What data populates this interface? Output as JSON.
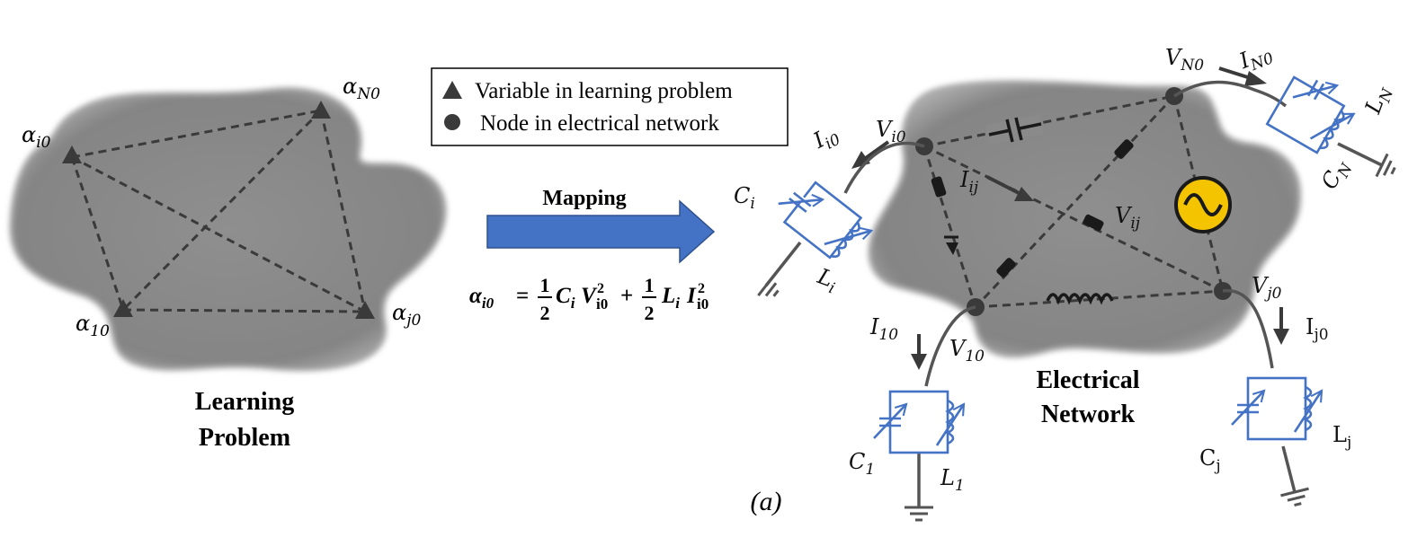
{
  "legend": {
    "variable": "Variable in learning problem",
    "node": "Node in electrical network"
  },
  "learning_problem": {
    "title_line1": "Learning",
    "title_line2": "Problem",
    "labels": {
      "a_i0": {
        "base": "α",
        "sub": "i0"
      },
      "a_N0": {
        "base": "α",
        "sub": "N0"
      },
      "a_10": {
        "base": "α",
        "sub": "10"
      },
      "a_j0": {
        "base": "α",
        "sub": "j0"
      }
    }
  },
  "mapping": {
    "label": "Mapping",
    "formula": {
      "lhs": "α",
      "lhs_sub": "i0",
      "eq": "=",
      "half": {
        "num": "1",
        "den": "2"
      },
      "term1_c": "C",
      "term1_c_sub": "i",
      "term1_v": "V",
      "term1_v_sub": "i0",
      "term1_v_sup": "2",
      "plus": "+",
      "term2_l": "L",
      "term2_l_sub": "i",
      "term2_i": "I",
      "term2_i_sub": "i0",
      "term2_i_sup": "2"
    }
  },
  "electrical_network": {
    "title_line1": "Electrical",
    "title_line2": "Network",
    "labels": {
      "V_i0": {
        "base": "V",
        "sub": "i0"
      },
      "V_N0": {
        "base": "V",
        "sub": "N0"
      },
      "V_10": {
        "base": "V",
        "sub": "10"
      },
      "V_j0": {
        "base": "V",
        "sub": "j0"
      },
      "V_ij": {
        "base": "V",
        "sub": "ij"
      },
      "I_i0": {
        "base": "I",
        "sub": "i0"
      },
      "I_N0": {
        "base": "I",
        "sub": "N0"
      },
      "I_10": {
        "base": "I",
        "sub": "10"
      },
      "I_j0": {
        "base": "I",
        "sub": "j0"
      },
      "I_ij": {
        "base": "I",
        "sub": "ij"
      },
      "C_i": {
        "base": "C",
        "sub": "i"
      },
      "L_i": {
        "base": "L",
        "sub": "i"
      },
      "C_N": {
        "base": "C",
        "sub": "N"
      },
      "L_N": {
        "base": "L",
        "sub": "N"
      },
      "C_1": {
        "base": "C",
        "sub": "1"
      },
      "L_1": {
        "base": "L",
        "sub": "1"
      },
      "C_j": {
        "base": "C",
        "sub": "j"
      },
      "L_j": {
        "base": "L",
        "sub": "j"
      }
    }
  },
  "caption": "(a)",
  "colors": {
    "blob": "#8c8c8c",
    "dash": "#3a3a3a",
    "component": "#4472c4",
    "arrow": "#4472c4",
    "source": "#f5c400"
  }
}
